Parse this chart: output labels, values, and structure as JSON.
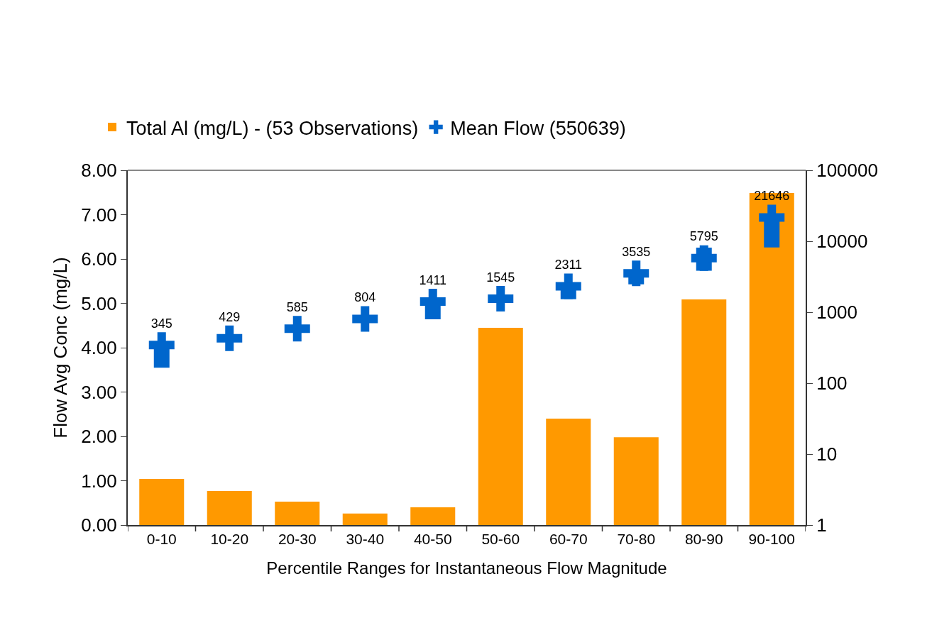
{
  "chart_data": {
    "type": "bar",
    "xlabel": "Percentile Ranges for Instantaneous Flow Magnitude",
    "ylabel": "Flow Avg Conc (mg/L)",
    "categories": [
      "0-10",
      "10-20",
      "20-30",
      "30-40",
      "40-50",
      "50-60",
      "60-70",
      "70-80",
      "80-90",
      "90-100"
    ],
    "series": [
      {
        "name": "Total Al (mg/L) - (53 Observations)",
        "color": "#ff9900",
        "values": [
          1.04,
          0.77,
          0.53,
          0.26,
          0.4,
          4.45,
          2.4,
          1.98,
          5.09,
          7.49
        ]
      },
      {
        "name": "Mean Flow (550639)",
        "type": "scatter",
        "axis": "y2",
        "color": "#0066cc",
        "values": [
          345,
          429,
          585,
          804,
          1411,
          1545,
          2311,
          3535,
          5795,
          21646
        ],
        "errors": [
          [
            165,
            347
          ],
          null,
          null,
          null,
          [
            794,
            1411
          ],
          null,
          [
            1525,
            2311
          ],
          [
            2470,
            3535
          ],
          [
            3840,
            8130
          ],
          [
            8180,
            21646
          ]
        ],
        "value_labels": [
          "345",
          "429",
          "585",
          "804",
          "1411",
          "1545",
          "2311",
          "3535",
          "5795",
          "21646"
        ]
      }
    ],
    "ylim": [
      0,
      8
    ],
    "yticks": [
      {
        "value": 0,
        "label": "0.00"
      },
      {
        "value": 1,
        "label": "1.00"
      },
      {
        "value": 2,
        "label": "2.00"
      },
      {
        "value": 3,
        "label": "3.00"
      },
      {
        "value": 4,
        "label": "4.00"
      },
      {
        "value": 5,
        "label": "5.00"
      },
      {
        "value": 6,
        "label": "6.00"
      },
      {
        "value": 7,
        "label": "7.00"
      },
      {
        "value": 8,
        "label": "8.00"
      }
    ],
    "marker": "cross",
    "y2lim": [
      1,
      100000
    ],
    "y2ticks": [
      1,
      10,
      100,
      1000,
      10000,
      100000
    ],
    "log": "y2",
    "legend": "top left",
    "grid": false
  }
}
